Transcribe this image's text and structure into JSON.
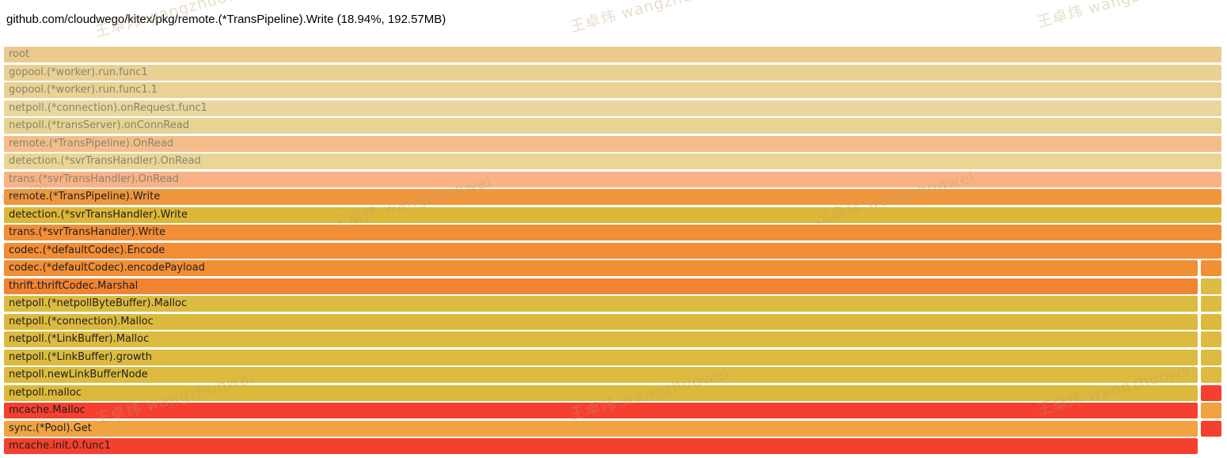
{
  "header": {
    "title": "github.com/cloudwego/kitex/pkg/remote.(*TransPipeline).Write (18.94%, 192.57MB)"
  },
  "watermark": {
    "text": "王卓炜 wangzhuowei"
  },
  "chart_data": {
    "type": "flamegraph",
    "title": "github.com/cloudwego/kitex/pkg/remote.(*TransPipeline).Write (18.94%, 192.57MB)",
    "selected_frame": {
      "name": "github.com/cloudwego/kitex/pkg/remote.(*TransPipeline).Write",
      "percent": "18.94%",
      "value": "192.57MB"
    },
    "layout_note": "rows are stack depth top-down; rows 13-22 have a narrow unlabeled sibling column at far right",
    "frames": [
      {
        "depth": 0,
        "label": "root",
        "color": "#ecc98c",
        "muted": true,
        "split": false
      },
      {
        "depth": 1,
        "label": "gopool.(*worker).run.func1",
        "color": "#e9d194",
        "muted": true,
        "split": false
      },
      {
        "depth": 2,
        "label": "gopool.(*worker).run.func1.1",
        "color": "#e9d294",
        "muted": true,
        "split": false
      },
      {
        "depth": 3,
        "label": "netpoll.(*connection).onRequest.func1",
        "color": "#ebd79e",
        "muted": true,
        "split": false
      },
      {
        "depth": 4,
        "label": "netpoll.(*transServer).onConnRead",
        "color": "#e7d493",
        "muted": true,
        "split": false
      },
      {
        "depth": 5,
        "label": "remote.(*TransPipeline).OnRead",
        "color": "#f5bd89",
        "muted": true,
        "split": false
      },
      {
        "depth": 6,
        "label": "detection.(*svrTransHandler).OnRead",
        "color": "#e9d695",
        "muted": true,
        "split": false
      },
      {
        "depth": 7,
        "label": "trans.(*svrTransHandler).OnRead",
        "color": "#f9b285",
        "muted": true,
        "split": false
      },
      {
        "depth": 8,
        "label": "remote.(*TransPipeline).Write",
        "color": "#f0973e",
        "muted": false,
        "split": false
      },
      {
        "depth": 9,
        "label": "detection.(*svrTransHandler).Write",
        "color": "#ddb737",
        "muted": false,
        "split": false
      },
      {
        "depth": 10,
        "label": "trans.(*svrTransHandler).Write",
        "color": "#f28e38",
        "muted": false,
        "split": false
      },
      {
        "depth": 11,
        "label": "codec.(*defaultCodec).Encode",
        "color": "#f28d36",
        "muted": false,
        "split": false
      },
      {
        "depth": 12,
        "label": "codec.(*defaultCodec).encodePayload",
        "color": "#f18f35",
        "muted": false,
        "split": true,
        "right_color": "#f18f35"
      },
      {
        "depth": 13,
        "label": "thrift.thriftCodec.Marshal",
        "color": "#f08433",
        "muted": false,
        "split": true,
        "right_color": "#dcbc42"
      },
      {
        "depth": 14,
        "label": "netpoll.(*netpollByteBuffer).Malloc",
        "color": "#dcbb40",
        "muted": false,
        "split": true,
        "right_color": "#dcbb40"
      },
      {
        "depth": 15,
        "label": "netpoll.(*connection).Malloc",
        "color": "#dbba3e",
        "muted": false,
        "split": true,
        "right_color": "#dbba3e"
      },
      {
        "depth": 16,
        "label": "netpoll.(*LinkBuffer).Malloc",
        "color": "#dcbb40",
        "muted": false,
        "split": true,
        "right_color": "#dcbb40"
      },
      {
        "depth": 17,
        "label": "netpoll.(*LinkBuffer).growth",
        "color": "#dcbb40",
        "muted": false,
        "split": true,
        "right_color": "#dcbb40"
      },
      {
        "depth": 18,
        "label": "netpoll.newLinkBufferNode",
        "color": "#dcbb40",
        "muted": false,
        "split": true,
        "right_color": "#dcbb40"
      },
      {
        "depth": 19,
        "label": "netpoll.malloc",
        "color": "#dbb93a",
        "muted": false,
        "split": true,
        "right_color": "#f5402f"
      },
      {
        "depth": 20,
        "label": "mcache.Malloc",
        "color": "#f5402f",
        "muted": false,
        "split": true,
        "right_color": "#f0a341"
      },
      {
        "depth": 21,
        "label": "sync.(*Pool).Get",
        "color": "#f0a341",
        "muted": false,
        "split": true,
        "right_color": "#f5402f"
      },
      {
        "depth": 22,
        "label": "mcache.init.0.func1",
        "color": "#f5402f",
        "muted": false,
        "split": true,
        "right_color": null
      }
    ],
    "palette": {
      "gold": "#dcbb40",
      "orange": "#f28d36",
      "red": "#f5402f",
      "amber": "#f0a341",
      "tan_muted": "#e9d294",
      "peach_muted": "#f9b285"
    }
  }
}
